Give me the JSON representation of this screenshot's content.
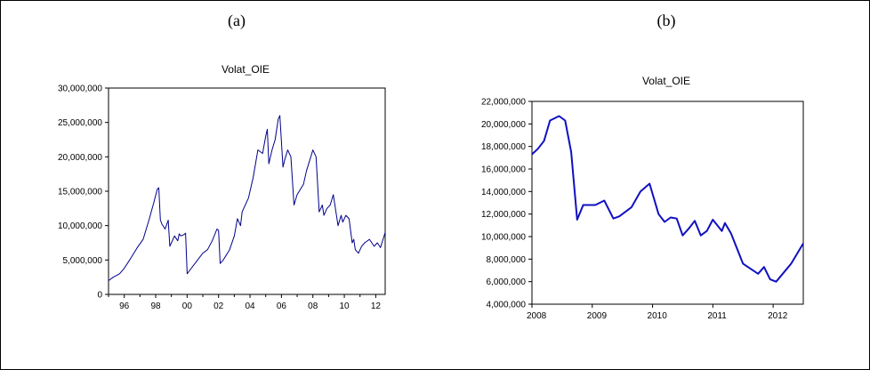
{
  "panels": [
    "(a)",
    "(b)"
  ],
  "chart_data": [
    {
      "type": "line",
      "title": "Volat_OIE",
      "xlabel": "",
      "ylabel": "",
      "ylim": [
        0,
        30000000
      ],
      "xlim": [
        1995.0,
        2012.6
      ],
      "y_ticks": [
        0,
        5000000,
        10000000,
        15000000,
        20000000,
        25000000,
        30000000
      ],
      "y_tick_labels": [
        "0",
        "5,000,000",
        "10,000,000",
        "15,000,000",
        "20,000,000",
        "25,000,000",
        "30,000,000"
      ],
      "x_ticks": [
        1996,
        1998,
        2000,
        2002,
        2004,
        2006,
        2008,
        2010,
        2012
      ],
      "x_tick_labels": [
        "96",
        "98",
        "00",
        "02",
        "04",
        "06",
        "08",
        "10",
        "12"
      ],
      "grid": false,
      "line_color": "#00008b",
      "series": [
        {
          "x": [
            1995.0,
            1995.3,
            1995.7,
            1996.0,
            1996.4,
            1996.8,
            1997.2,
            1997.6,
            1997.9,
            1998.1,
            1998.2,
            1998.3,
            1998.4,
            1998.6,
            1998.8,
            1998.9,
            1999.0,
            1999.2,
            1999.4,
            1999.5,
            1999.6,
            1999.8,
            1999.9,
            2000.0,
            2000.1,
            2000.5,
            2001.0,
            2001.3,
            2001.6,
            2001.9,
            2002.0,
            2002.1,
            2002.3,
            2002.7,
            2003.0,
            2003.2,
            2003.4,
            2003.5,
            2003.9,
            2004.2,
            2004.5,
            2004.8,
            2005.0,
            2005.1,
            2005.2,
            2005.3,
            2005.4,
            2005.6,
            2005.8,
            2005.9,
            2006.1,
            2006.2,
            2006.4,
            2006.6,
            2006.8,
            2007.0,
            2007.4,
            2007.6,
            2007.8,
            2008.0,
            2008.2,
            2008.4,
            2008.5,
            2008.6,
            2008.7,
            2008.9,
            2009.1,
            2009.3,
            2009.6,
            2009.8,
            2009.9,
            2010.1,
            2010.3,
            2010.5,
            2010.6,
            2010.7,
            2010.9,
            2011.1,
            2011.3,
            2011.6,
            2011.9,
            2012.1,
            2012.3,
            2012.6
          ],
          "values": [
            2000000,
            2500000,
            3000000,
            3800000,
            5200000,
            6700000,
            8000000,
            11000000,
            13500000,
            15300000,
            15500000,
            10800000,
            10200000,
            9500000,
            10800000,
            7000000,
            7500000,
            8500000,
            7800000,
            8800000,
            8500000,
            8700000,
            8900000,
            3000000,
            3300000,
            4500000,
            6000000,
            6500000,
            7800000,
            9500000,
            9300000,
            4500000,
            5000000,
            6500000,
            8500000,
            11000000,
            10000000,
            12000000,
            14000000,
            17000000,
            21000000,
            20500000,
            23000000,
            24000000,
            19000000,
            20000000,
            21000000,
            22500000,
            25500000,
            26000000,
            18500000,
            19500000,
            21000000,
            20000000,
            13000000,
            14500000,
            16000000,
            18000000,
            19500000,
            21000000,
            20000000,
            12000000,
            12500000,
            13000000,
            11500000,
            12500000,
            13000000,
            14500000,
            10000000,
            11500000,
            10500000,
            11500000,
            11000000,
            7500000,
            8000000,
            6500000,
            6000000,
            7000000,
            7500000,
            8000000,
            7000000,
            7500000,
            6800000,
            9000000
          ]
        }
      ]
    },
    {
      "type": "line",
      "title": "Volat_OIE",
      "xlabel": "",
      "ylabel": "",
      "ylim": [
        4000000,
        22000000
      ],
      "xlim": [
        2008.0,
        2012.5
      ],
      "y_ticks": [
        4000000,
        6000000,
        8000000,
        10000000,
        12000000,
        14000000,
        16000000,
        18000000,
        20000000,
        22000000
      ],
      "y_tick_labels": [
        "4,000,000",
        "6,000,000",
        "8,000,000",
        "10,000,000",
        "12,000,000",
        "14,000,000",
        "16,000,000",
        "18,000,000",
        "20,000,000",
        "22,000,000"
      ],
      "x_ticks": [
        2008,
        2009,
        2010,
        2011,
        2012
      ],
      "x_tick_labels": [
        "2008",
        "2009",
        "2010",
        "2011",
        "2012"
      ],
      "grid": false,
      "line_color": "#1010c0",
      "series": [
        {
          "x": [
            2008.0,
            2008.1,
            2008.2,
            2008.3,
            2008.45,
            2008.55,
            2008.65,
            2008.75,
            2008.85,
            2009.05,
            2009.2,
            2009.35,
            2009.45,
            2009.65,
            2009.8,
            2009.95,
            2010.1,
            2010.2,
            2010.3,
            2010.4,
            2010.5,
            2010.6,
            2010.7,
            2010.8,
            2010.9,
            2011.0,
            2011.15,
            2011.2,
            2011.3,
            2011.5,
            2011.75,
            2011.85,
            2011.95,
            2012.05,
            2012.3,
            2012.5
          ],
          "values": [
            17300000,
            17800000,
            18500000,
            20300000,
            20700000,
            20300000,
            17500000,
            11500000,
            12800000,
            12800000,
            13200000,
            11600000,
            11800000,
            12600000,
            14000000,
            14700000,
            12000000,
            11300000,
            11700000,
            11600000,
            10100000,
            10700000,
            11400000,
            10100000,
            10500000,
            11500000,
            10500000,
            11200000,
            10300000,
            7600000,
            6700000,
            7300000,
            6200000,
            6000000,
            7600000,
            9400000
          ]
        }
      ]
    }
  ]
}
